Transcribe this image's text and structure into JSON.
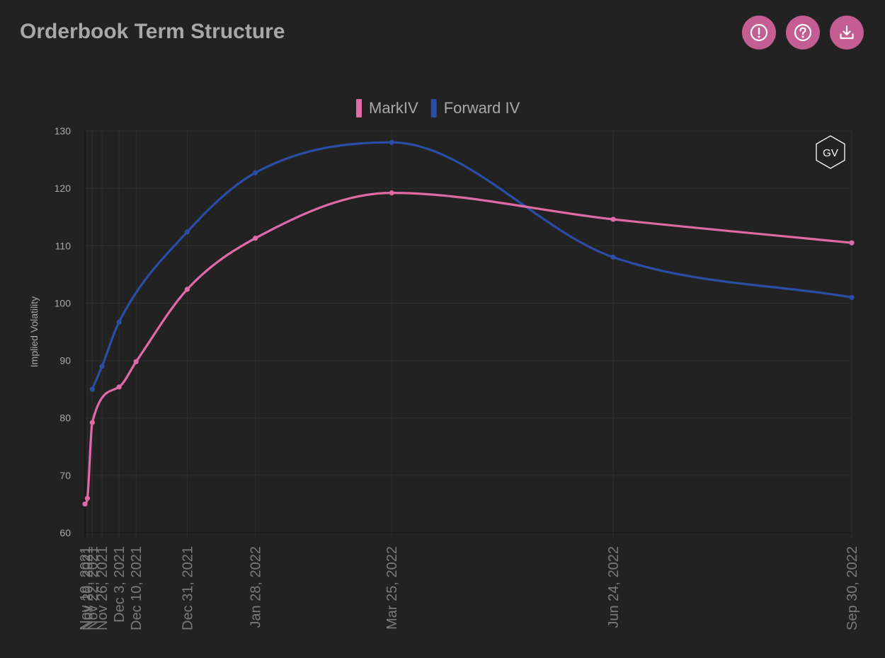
{
  "header": {
    "title": "Orderbook Term Structure",
    "buttons": [
      {
        "icon": "alert-icon"
      },
      {
        "icon": "help-icon"
      },
      {
        "icon": "download-icon"
      }
    ]
  },
  "logo": {
    "text": "GV"
  },
  "colors": {
    "background": "#222222",
    "accent": "#c45e92",
    "markiv": "#e06aa8",
    "forward": "#2a4ea5",
    "grid": "#2e2e2e",
    "text": "#a8a8a8"
  },
  "chart_data": {
    "type": "line",
    "title": "",
    "xlabel": "",
    "ylabel": "Implied Volatility",
    "ylim": [
      60,
      130
    ],
    "yticks": [
      60,
      70,
      80,
      90,
      100,
      110,
      120,
      130
    ],
    "legend_position": "top-center",
    "grid": true,
    "x": [
      "2021-11-19",
      "2021-11-20",
      "2021-11-22",
      "2021-11-26",
      "2021-12-03",
      "2021-12-10",
      "2021-12-31",
      "2022-01-28",
      "2022-03-25",
      "2022-06-24",
      "2022-09-30"
    ],
    "x_tick_labels": [
      "Nov 19, 2021",
      "Nov 20, 2021",
      "Nov 22, 2021",
      "Nov 26, 2021",
      "Dec 3, 2021",
      "Dec 10, 2021",
      "Dec 31, 2021",
      "Jan 28, 2022",
      "Mar 25, 2022",
      "Jun 24, 2022",
      "Sep 30, 2022"
    ],
    "series": [
      {
        "name": "MarkIV",
        "color": "#e06aa8",
        "values": [
          65.0,
          66.0,
          79.2,
          null,
          85.4,
          89.8,
          102.4,
          111.3,
          119.2,
          114.6,
          110.5
        ]
      },
      {
        "name": "Forward IV",
        "color": "#2a4ea5",
        "values": [
          null,
          null,
          85.0,
          89.0,
          96.7,
          null,
          112.4,
          122.7,
          128.0,
          108.0,
          101.0
        ]
      }
    ]
  }
}
